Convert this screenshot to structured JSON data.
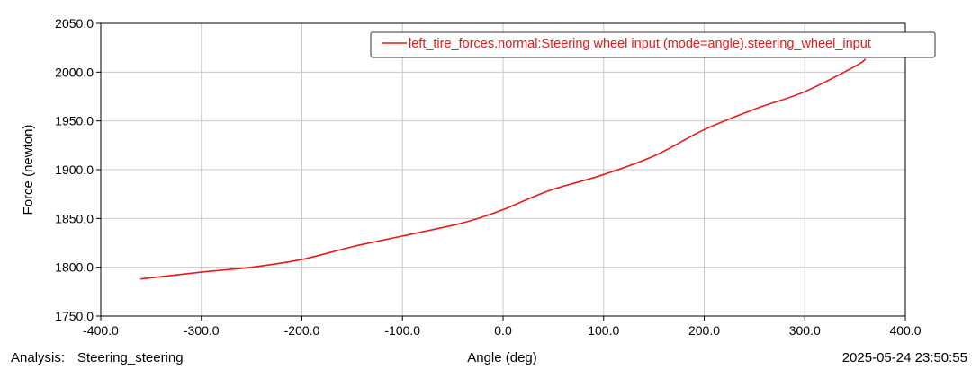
{
  "chart_data": {
    "type": "line",
    "xlabel": "Angle (deg)",
    "ylabel": "Force (newton)",
    "xlim": [
      -400,
      400
    ],
    "ylim": [
      1750,
      2050
    ],
    "x_ticks": [
      -400,
      -300,
      -200,
      -100,
      0,
      100,
      200,
      300,
      400
    ],
    "y_ticks": [
      1750,
      1800,
      1850,
      1900,
      1950,
      2000,
      2050
    ],
    "x_tick_labels": [
      "-400.0",
      "-300.0",
      "-200.0",
      "-100.0",
      "0.0",
      "100.0",
      "200.0",
      "300.0",
      "400.0"
    ],
    "y_tick_labels": [
      "1750.0",
      "1800.0",
      "1850.0",
      "1900.0",
      "1950.0",
      "2000.0",
      "2050.0"
    ],
    "grid": true,
    "legend_position": "top-right",
    "series": [
      {
        "name": "left_tire_forces.normal:Steering wheel input (mode=angle).steering_wheel_input",
        "color": "#e8191b",
        "x": [
          -360,
          -300,
          -250,
          -200,
          -150,
          -100,
          -50,
          -25,
          0,
          25,
          50,
          100,
          150,
          200,
          250,
          300,
          350,
          360
        ],
        "y": [
          1788,
          1795,
          1800,
          1808,
          1821,
          1832,
          1843,
          1850,
          1859,
          1870,
          1880,
          1895,
          1914,
          1941,
          1962,
          1980,
          2006,
          2013
        ]
      }
    ]
  },
  "footer": {
    "analysis_label": "Analysis:",
    "analysis_name": "Steering_steering",
    "timestamp": "2025-05-24 23:50:55"
  },
  "colors": {
    "series": "#e8191b",
    "grid": "#c8c8c8",
    "axis": "#000000",
    "background": "#ffffff"
  }
}
